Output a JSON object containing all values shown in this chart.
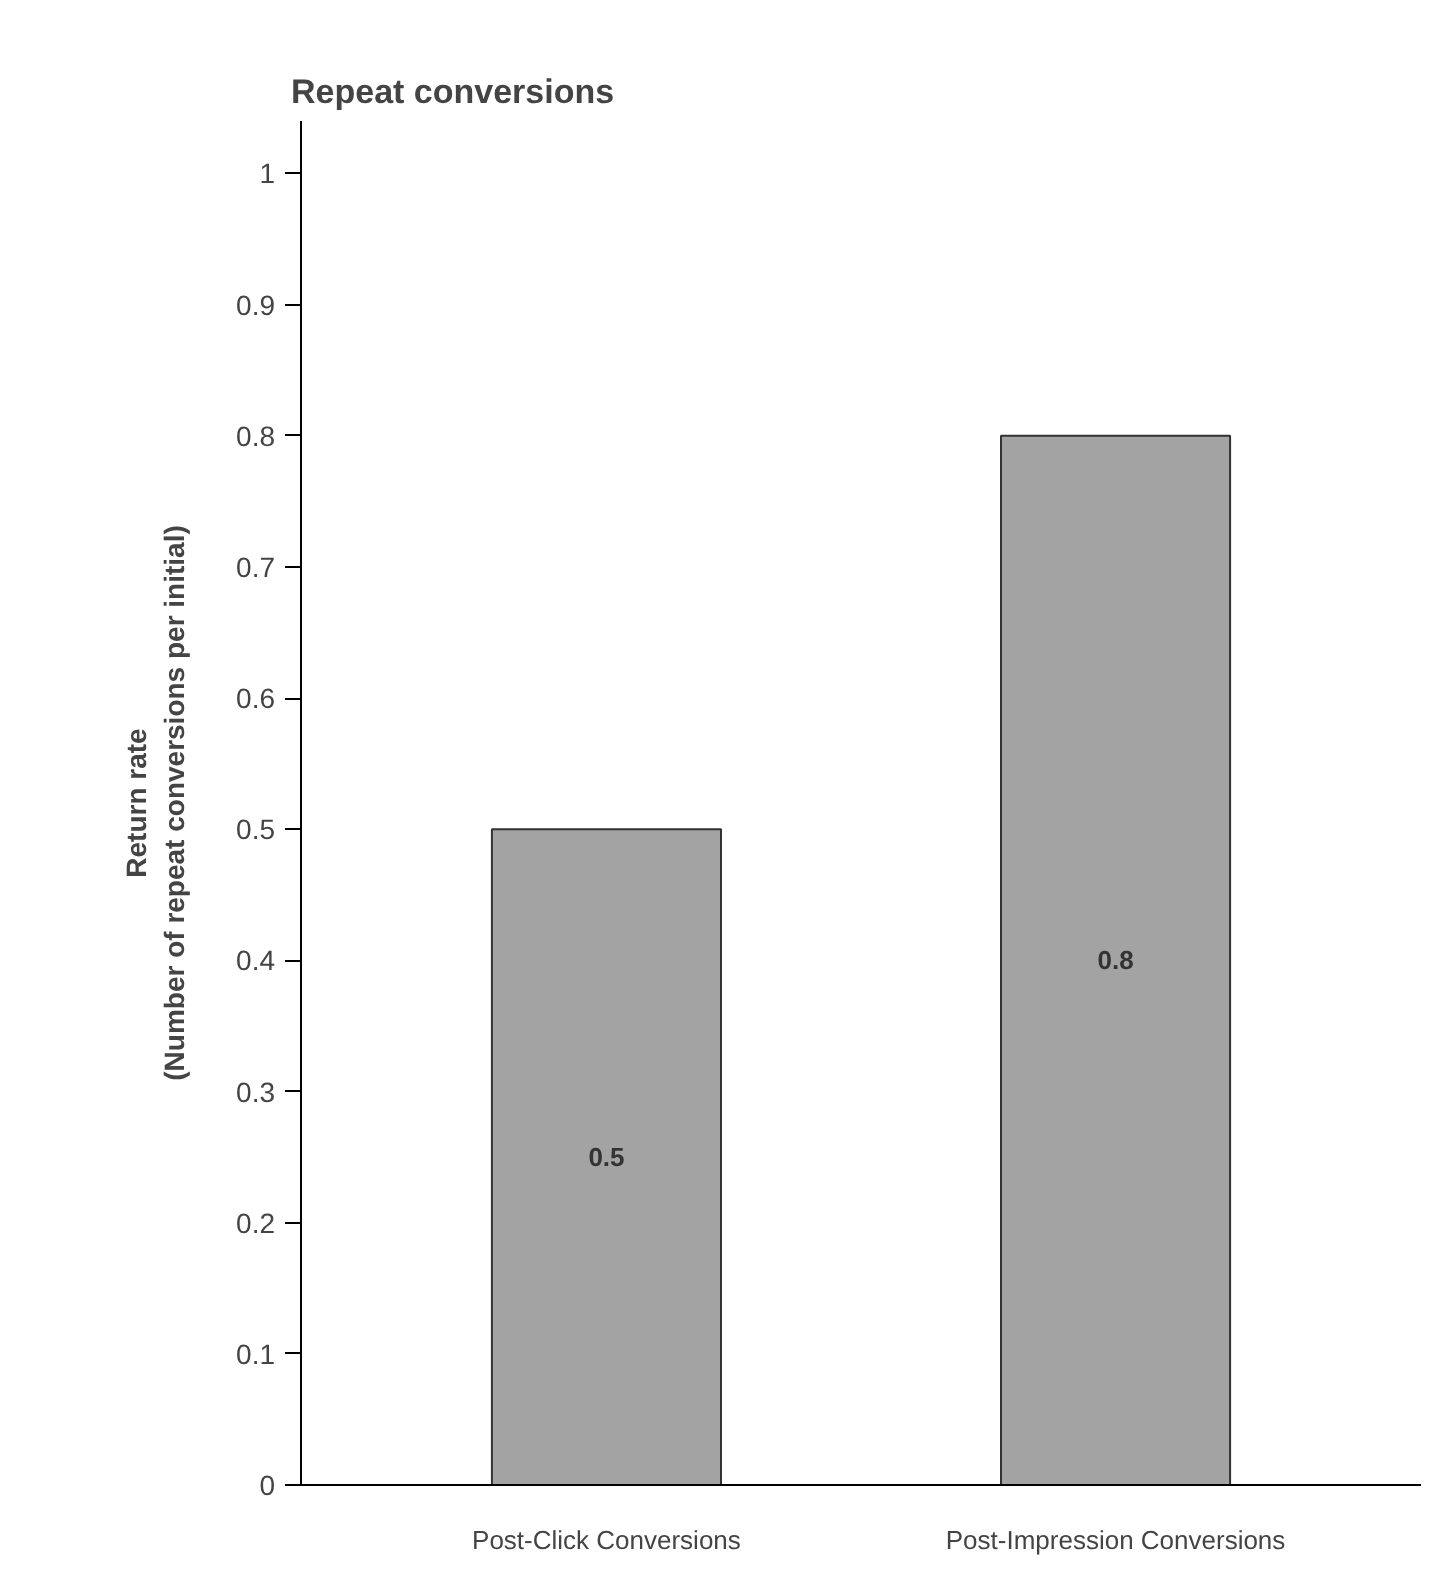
{
  "chart_data": {
    "type": "bar",
    "title": "Repeat conversions",
    "ylabel": "Return rate\n(Number of repeat conversions per initial)",
    "categories": [
      "Post-Click Conversions",
      "Post-Impression Conversions"
    ],
    "values": [
      0.5,
      0.8
    ],
    "color": "#a3a3a3",
    "ylim": [
      0,
      1.04
    ],
    "yticks": [
      0,
      0.1,
      0.2,
      0.3,
      0.4,
      0.5,
      0.6,
      0.7,
      0.8,
      0.9,
      1
    ],
    "data_labels": true,
    "grid": false
  }
}
